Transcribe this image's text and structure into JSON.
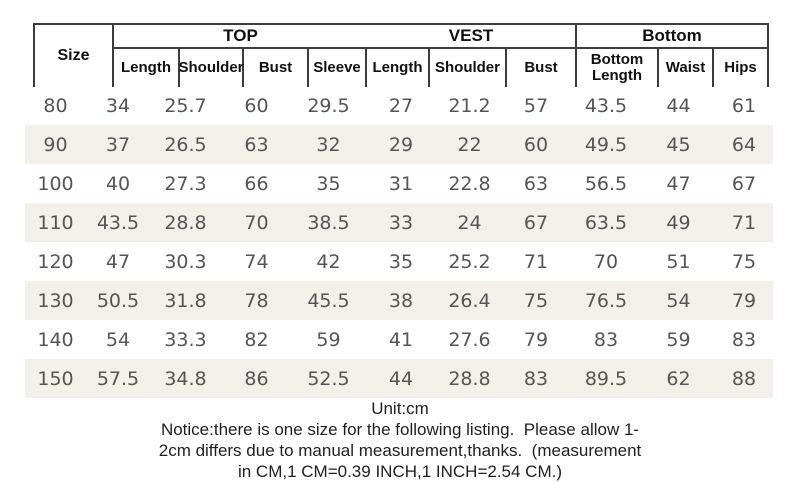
{
  "colors": {
    "border": "#3c3c3c",
    "header_text": "#111111",
    "data_text": "#555555",
    "row_stripe": "#f3f0ea",
    "background": "#ffffff"
  },
  "table": {
    "size_header": "Size",
    "groups": [
      {
        "label": "TOP",
        "columns": [
          "Length",
          "Shoulder",
          "Bust",
          "Sleeve"
        ]
      },
      {
        "label": "VEST",
        "columns": [
          "Length",
          "Shoulder",
          "Bust"
        ]
      },
      {
        "label": "Bottom",
        "columns": [
          "Bottom Length",
          "Waist",
          "Hips"
        ]
      }
    ],
    "rows": [
      {
        "size": "80",
        "values": [
          "34",
          "25.7",
          "60",
          "29.5",
          "27",
          "21.2",
          "57",
          "43.5",
          "44",
          "61"
        ]
      },
      {
        "size": "90",
        "values": [
          "37",
          "26.5",
          "63",
          "32",
          "29",
          "22",
          "60",
          "49.5",
          "45",
          "64"
        ]
      },
      {
        "size": "100",
        "values": [
          "40",
          "27.3",
          "66",
          "35",
          "31",
          "22.8",
          "63",
          "56.5",
          "47",
          "67"
        ]
      },
      {
        "size": "110",
        "values": [
          "43.5",
          "28.8",
          "70",
          "38.5",
          "33",
          "24",
          "67",
          "63.5",
          "49",
          "71"
        ]
      },
      {
        "size": "120",
        "values": [
          "47",
          "30.3",
          "74",
          "42",
          "35",
          "25.2",
          "71",
          "70",
          "51",
          "75"
        ]
      },
      {
        "size": "130",
        "values": [
          "50.5",
          "31.8",
          "78",
          "45.5",
          "38",
          "26.4",
          "75",
          "76.5",
          "54",
          "79"
        ]
      },
      {
        "size": "140",
        "values": [
          "54",
          "33.3",
          "82",
          "59",
          "41",
          "27.6",
          "79",
          "83",
          "59",
          "83"
        ]
      },
      {
        "size": "150",
        "values": [
          "57.5",
          "34.8",
          "86",
          "52.5",
          "44",
          "28.8",
          "83",
          "89.5",
          "62",
          "88"
        ]
      }
    ]
  },
  "chart_data": {
    "type": "table",
    "title": "Size chart (Unit:cm)",
    "column_headers": [
      "Size",
      "TOP Length",
      "TOP Shoulder",
      "TOP Bust",
      "TOP Sleeve",
      "VEST Length",
      "VEST Shoulder",
      "VEST Bust",
      "Bottom Length",
      "Waist",
      "Hips"
    ],
    "rows": [
      [
        80,
        34,
        25.7,
        60,
        29.5,
        27,
        21.2,
        57,
        43.5,
        44,
        61
      ],
      [
        90,
        37,
        26.5,
        63,
        32,
        29,
        22,
        60,
        49.5,
        45,
        64
      ],
      [
        100,
        40,
        27.3,
        66,
        35,
        31,
        22.8,
        63,
        56.5,
        47,
        67
      ],
      [
        110,
        43.5,
        28.8,
        70,
        38.5,
        33,
        24,
        67,
        63.5,
        49,
        71
      ],
      [
        120,
        47,
        30.3,
        74,
        42,
        35,
        25.2,
        71,
        70,
        51,
        75
      ],
      [
        130,
        50.5,
        31.8,
        78,
        45.5,
        38,
        26.4,
        75,
        76.5,
        54,
        79
      ],
      [
        140,
        54,
        33.3,
        82,
        59,
        41,
        27.6,
        79,
        83,
        59,
        83
      ],
      [
        150,
        57.5,
        34.8,
        86,
        52.5,
        44,
        28.8,
        83,
        89.5,
        62,
        88
      ]
    ]
  },
  "footer": {
    "unit": "Unit:cm",
    "notice_lines": [
      "Notice:there is one size for the following listing.  Please allow 1-",
      "2cm differs due to manual measurement,thanks.  (measurement",
      "in CM,1 CM=0.39 INCH,1 INCH=2.54 CM.)"
    ]
  }
}
